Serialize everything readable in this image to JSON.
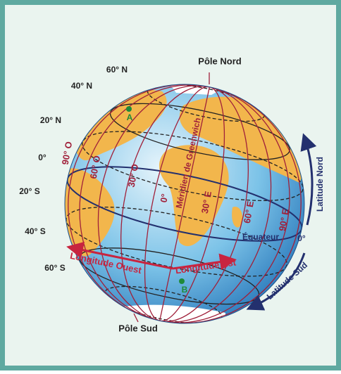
{
  "poles": {
    "north": "Pôle Nord",
    "south": "Pôle Sud"
  },
  "latitude_labels": [
    "60° N",
    "40° N",
    "20° N",
    "0°",
    "20° S",
    "40° S",
    "60° S"
  ],
  "longitude_labels": [
    "90° O",
    "60° O",
    "30° O",
    "0°",
    "30° E",
    "60° E",
    "90° E"
  ],
  "meridian": "Méridien de Greenwich",
  "equator": "Équateur",
  "equator_degree": "0°",
  "latitude_arrows": {
    "north": "Latitude Nord",
    "south": "Latitude Sud"
  },
  "longitude_arrows": {
    "west": "Longitude Ouest",
    "east": "Longitude Est"
  },
  "points": [
    "A",
    "B"
  ]
}
